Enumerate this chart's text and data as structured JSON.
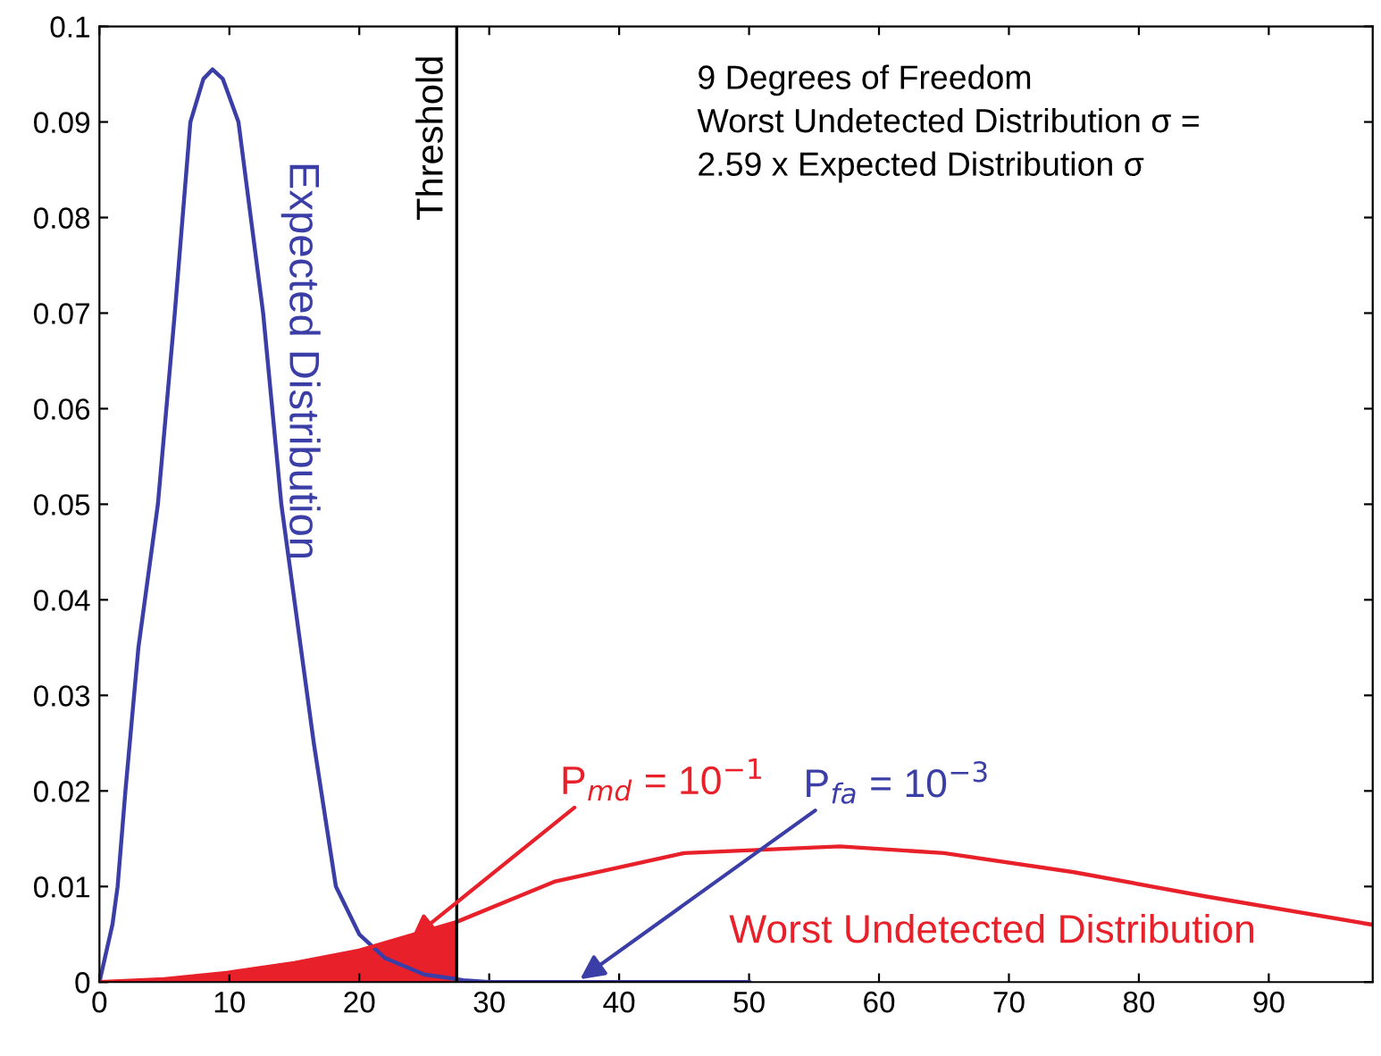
{
  "chart_data": {
    "type": "line",
    "xlim": [
      0,
      98
    ],
    "xticks": [
      0,
      10,
      20,
      30,
      40,
      50,
      60,
      70,
      80,
      90
    ],
    "ylim": [
      0,
      0.1
    ],
    "yticks": [
      0,
      0.01,
      0.02,
      0.03,
      0.04,
      0.05,
      0.06,
      0.07,
      0.08,
      0.09,
      0.1
    ],
    "grid": false,
    "marker": "none",
    "line_style": "solid",
    "series": [
      {
        "name": "Expected Distribution",
        "color": "#3a3ea6",
        "x": [
          0,
          1,
          1.4,
          2,
          3,
          4.5,
          5.8,
          7,
          8,
          8.7,
          9.5,
          10.7,
          12.6,
          14,
          15.5,
          16.5,
          18.2,
          20,
          22,
          25,
          28,
          30,
          50
        ],
        "values": [
          0,
          0.006,
          0.01,
          0.02,
          0.035,
          0.05,
          0.07,
          0.09,
          0.0945,
          0.0955,
          0.0945,
          0.09,
          0.07,
          0.05,
          0.035,
          0.025,
          0.01,
          0.005,
          0.0025,
          0.0008,
          0.0002,
          0,
          0
        ]
      },
      {
        "name": "Worst Undetected Distribution",
        "color": "#e8202a",
        "x": [
          0,
          5,
          10,
          15,
          20,
          27.5,
          35,
          45,
          57,
          65,
          75,
          85,
          98
        ],
        "values": [
          0,
          0.0003,
          0.001,
          0.002,
          0.0033,
          0.0063,
          0.0105,
          0.0135,
          0.0142,
          0.0135,
          0.0115,
          0.009,
          0.006
        ]
      },
      {
        "type": "area",
        "color": "#e8202a",
        "x": [
          0,
          5,
          10,
          15,
          20,
          27.5
        ],
        "values": [
          0,
          0.0003,
          0.001,
          0.002,
          0.0033,
          0.0063
        ]
      }
    ],
    "ref_lines": [
      {
        "axis": "x",
        "value": 27.5,
        "label": "Threshold",
        "color": "#000000"
      }
    ],
    "annotations": [
      "9 Degrees of Freedom\nWorst Undetected Distribution σ =\n2.59 x Expected Distribution σ",
      {
        "text": "P$_{md}$ = 10$^{−1}$",
        "x": 24,
        "y": 0.0045
      },
      {
        "text": "P$_{fa}$ = 10$^{−3}$",
        "x": 37,
        "y": 0.0003
      }
    ]
  }
}
